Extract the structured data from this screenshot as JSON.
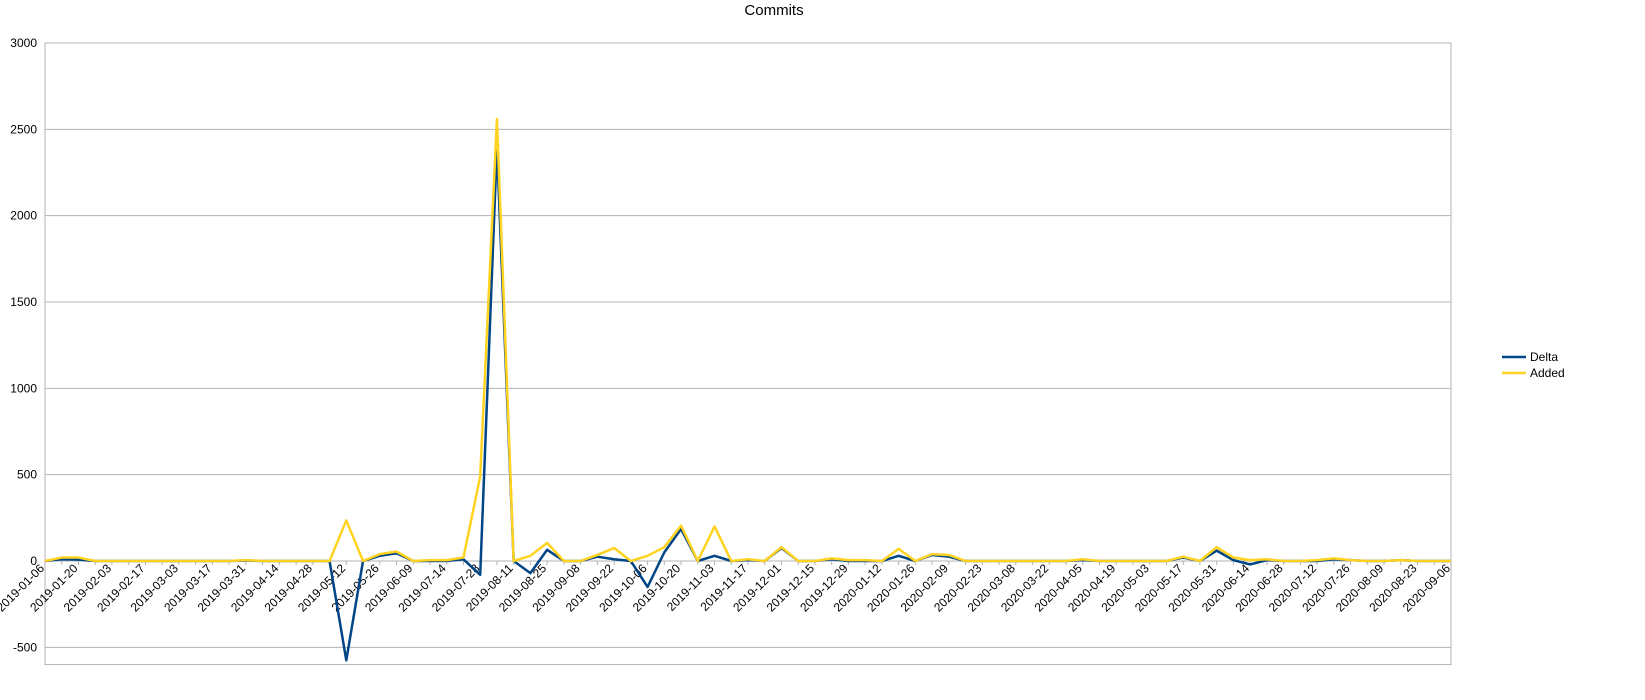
{
  "chart_data": {
    "type": "line",
    "title": "Commits",
    "categories": [
      "2019-01-06",
      null,
      "2019-01-20",
      null,
      "2019-02-03",
      null,
      "2019-02-17",
      null,
      "2019-03-03",
      null,
      "2019-03-17",
      null,
      "2019-03-31",
      null,
      "2019-04-14",
      null,
      "2019-04-28",
      null,
      "2019-05-12",
      null,
      "2019-05-26",
      null,
      "2019-06-09",
      null,
      "2019-07-14",
      null,
      "2019-07-28",
      null,
      "2019-08-11",
      null,
      "2019-08-25",
      null,
      "2019-09-08",
      null,
      "2019-09-22",
      null,
      "2019-10-06",
      null,
      "2019-10-20",
      null,
      "2019-11-03",
      null,
      "2019-11-17",
      null,
      "2019-12-01",
      null,
      "2019-12-15",
      null,
      "2019-12-29",
      null,
      "2020-01-12",
      null,
      "2020-01-26",
      null,
      "2020-02-09",
      null,
      "2020-02-23",
      null,
      "2020-03-08",
      null,
      "2020-03-22",
      null,
      "2020-04-05",
      null,
      "2020-04-19",
      null,
      "2020-05-03",
      null,
      "2020-05-17",
      null,
      "2020-05-31",
      null,
      "2020-06-14",
      null,
      "2020-06-28",
      null,
      "2020-07-12",
      null,
      "2020-07-26",
      null,
      "2020-08-09",
      null,
      "2020-08-23",
      null,
      "2020-09-06"
    ],
    "series": [
      {
        "name": "Delta",
        "color": "#004586",
        "values": [
          0,
          10,
          8,
          0,
          0,
          0,
          0,
          0,
          0,
          0,
          0,
          0,
          3,
          0,
          0,
          0,
          0,
          0,
          -575,
          0,
          30,
          45,
          0,
          0,
          0,
          10,
          -80,
          2400,
          0,
          -70,
          65,
          0,
          0,
          25,
          10,
          0,
          -150,
          50,
          185,
          0,
          30,
          0,
          5,
          0,
          75,
          0,
          0,
          10,
          0,
          0,
          0,
          30,
          0,
          35,
          25,
          0,
          0,
          0,
          0,
          0,
          0,
          0,
          5,
          0,
          0,
          0,
          0,
          0,
          20,
          0,
          60,
          5,
          -20,
          5,
          0,
          0,
          0,
          10,
          5,
          0,
          0,
          5,
          0,
          0,
          0
        ]
      },
      {
        "name": "Added",
        "color": "#ffd320",
        "values": [
          0,
          20,
          20,
          0,
          0,
          0,
          0,
          0,
          0,
          0,
          0,
          0,
          5,
          0,
          0,
          0,
          0,
          0,
          235,
          0,
          40,
          55,
          0,
          5,
          5,
          20,
          490,
          2560,
          0,
          30,
          105,
          0,
          0,
          35,
          75,
          0,
          30,
          80,
          205,
          0,
          200,
          0,
          10,
          0,
          80,
          0,
          0,
          15,
          5,
          5,
          0,
          70,
          0,
          40,
          35,
          0,
          0,
          0,
          0,
          0,
          0,
          0,
          10,
          0,
          0,
          0,
          0,
          0,
          25,
          0,
          80,
          20,
          5,
          10,
          0,
          0,
          5,
          15,
          5,
          0,
          0,
          5,
          0,
          0,
          0
        ]
      }
    ],
    "ylim": [
      -600,
      3000
    ],
    "yticks": [
      -500,
      0,
      500,
      1000,
      1500,
      2000,
      2500,
      3000
    ],
    "grid": true,
    "legend": "right"
  }
}
